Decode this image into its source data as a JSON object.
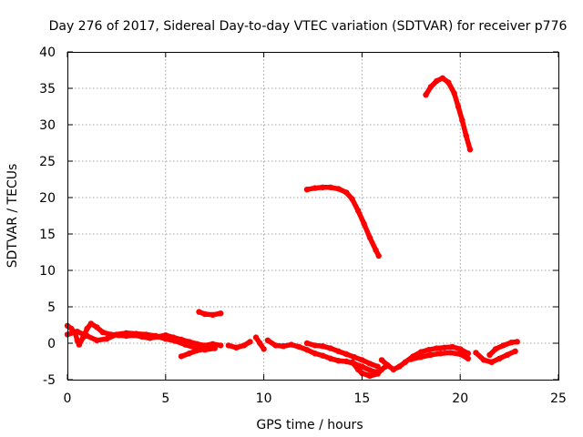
{
  "chart_data": {
    "type": "scatter",
    "title": "Day 276 of 2017, Sidereal Day-to-day VTEC variation (SDTVAR) for receiver p776",
    "xlabel": "GPS time / hours",
    "ylabel": "SDTVAR / TECUs",
    "xlim": [
      0,
      25
    ],
    "ylim": [
      -5,
      40
    ],
    "xticks": [
      0,
      5,
      10,
      15,
      20,
      25
    ],
    "yticks": [
      -5,
      0,
      5,
      10,
      15,
      20,
      25,
      30,
      35,
      40
    ],
    "grid": true,
    "color": "#ff0000",
    "series": [
      {
        "name": "s1",
        "points": [
          [
            0.0,
            2.4
          ],
          [
            0.2,
            2.0
          ],
          [
            0.4,
            1.4
          ],
          [
            0.5,
            0.4
          ],
          [
            0.6,
            -0.2
          ],
          [
            0.8,
            0.8
          ],
          [
            1.0,
            2.0
          ],
          [
            1.2,
            2.7
          ],
          [
            1.5,
            2.2
          ],
          [
            1.8,
            1.5
          ],
          [
            2.2,
            1.2
          ],
          [
            2.6,
            1.1
          ],
          [
            3.0,
            1.0
          ],
          [
            3.4,
            1.1
          ],
          [
            3.8,
            0.9
          ],
          [
            4.2,
            0.7
          ],
          [
            4.6,
            0.9
          ],
          [
            5.0,
            1.1
          ],
          [
            5.4,
            0.8
          ],
          [
            5.8,
            0.5
          ],
          [
            6.2,
            0.2
          ],
          [
            6.6,
            -0.1
          ],
          [
            7.0,
            -0.3
          ],
          [
            7.4,
            -0.1
          ],
          [
            7.8,
            -0.3
          ]
        ]
      },
      {
        "name": "s2",
        "points": [
          [
            0.0,
            1.2
          ],
          [
            0.5,
            1.6
          ],
          [
            1.0,
            1.0
          ],
          [
            1.5,
            0.4
          ],
          [
            2.0,
            0.6
          ],
          [
            2.5,
            1.2
          ],
          [
            3.0,
            1.4
          ],
          [
            3.5,
            1.3
          ],
          [
            4.0,
            1.2
          ],
          [
            4.5,
            1.0
          ],
          [
            5.0,
            0.6
          ],
          [
            5.5,
            0.3
          ],
          [
            6.0,
            -0.2
          ],
          [
            6.5,
            -0.6
          ],
          [
            7.0,
            -0.9
          ],
          [
            7.5,
            -0.7
          ]
        ]
      },
      {
        "name": "s3",
        "points": [
          [
            5.8,
            -1.8
          ],
          [
            6.2,
            -1.4
          ],
          [
            6.6,
            -1.0
          ],
          [
            7.0,
            -0.8
          ]
        ]
      },
      {
        "name": "s4",
        "points": [
          [
            6.7,
            4.3
          ],
          [
            7.0,
            4.0
          ],
          [
            7.4,
            3.9
          ],
          [
            7.8,
            4.1
          ]
        ]
      },
      {
        "name": "s5",
        "points": [
          [
            8.2,
            -0.3
          ],
          [
            8.6,
            -0.6
          ],
          [
            9.0,
            -0.3
          ],
          [
            9.3,
            0.2
          ]
        ]
      },
      {
        "name": "s6",
        "points": [
          [
            9.6,
            0.8
          ],
          [
            9.8,
            0.0
          ],
          [
            10.0,
            -0.8
          ]
        ]
      },
      {
        "name": "s7",
        "points": [
          [
            10.2,
            0.4
          ],
          [
            10.6,
            -0.3
          ],
          [
            11.0,
            -0.4
          ],
          [
            11.4,
            -0.2
          ],
          [
            11.8,
            -0.5
          ],
          [
            12.2,
            -0.9
          ],
          [
            12.6,
            -1.4
          ],
          [
            13.0,
            -1.7
          ],
          [
            13.4,
            -2.1
          ],
          [
            13.8,
            -2.4
          ],
          [
            14.2,
            -2.5
          ],
          [
            14.6,
            -2.8
          ],
          [
            15.0,
            -3.2
          ],
          [
            15.4,
            -3.7
          ],
          [
            15.8,
            -4.0
          ]
        ]
      },
      {
        "name": "s8",
        "points": [
          [
            12.2,
            0.0
          ],
          [
            12.6,
            -0.3
          ],
          [
            13.0,
            -0.4
          ],
          [
            13.4,
            -0.7
          ],
          [
            13.8,
            -1.1
          ],
          [
            14.2,
            -1.5
          ],
          [
            14.6,
            -1.9
          ],
          [
            15.0,
            -2.3
          ],
          [
            15.4,
            -2.8
          ],
          [
            15.8,
            -3.2
          ]
        ]
      },
      {
        "name": "s9",
        "points": [
          [
            14.5,
            -2.6
          ],
          [
            14.8,
            -3.6
          ],
          [
            15.0,
            -4.1
          ],
          [
            15.4,
            -4.5
          ],
          [
            15.8,
            -4.2
          ],
          [
            16.0,
            -3.6
          ],
          [
            16.2,
            -3.2
          ]
        ]
      },
      {
        "name": "s10",
        "points": [
          [
            16.0,
            -2.3
          ],
          [
            16.3,
            -3.0
          ],
          [
            16.6,
            -3.6
          ],
          [
            16.9,
            -3.2
          ],
          [
            17.2,
            -2.6
          ],
          [
            17.6,
            -1.8
          ],
          [
            18.0,
            -1.2
          ],
          [
            18.4,
            -0.9
          ],
          [
            18.8,
            -0.7
          ],
          [
            19.2,
            -0.6
          ],
          [
            19.6,
            -0.5
          ],
          [
            20.0,
            -0.8
          ],
          [
            20.4,
            -1.4
          ]
        ]
      },
      {
        "name": "s11",
        "points": [
          [
            17.5,
            -2.2
          ],
          [
            18.0,
            -1.9
          ],
          [
            18.5,
            -1.6
          ],
          [
            19.0,
            -1.4
          ],
          [
            19.5,
            -1.3
          ],
          [
            20.0,
            -1.5
          ],
          [
            20.4,
            -2.1
          ]
        ]
      },
      {
        "name": "s12",
        "points": [
          [
            20.8,
            -1.3
          ],
          [
            21.2,
            -2.3
          ],
          [
            21.6,
            -2.6
          ],
          [
            22.0,
            -2.1
          ],
          [
            22.4,
            -1.6
          ],
          [
            22.8,
            -1.1
          ]
        ]
      },
      {
        "name": "s13",
        "points": [
          [
            21.5,
            -1.6
          ],
          [
            21.8,
            -0.8
          ],
          [
            22.2,
            -0.3
          ],
          [
            22.6,
            0.1
          ],
          [
            22.9,
            0.2
          ]
        ]
      },
      {
        "name": "s14",
        "points": [
          [
            12.2,
            21.1
          ],
          [
            12.6,
            21.3
          ],
          [
            13.0,
            21.4
          ],
          [
            13.4,
            21.4
          ],
          [
            13.8,
            21.2
          ],
          [
            14.2,
            20.7
          ],
          [
            14.5,
            19.8
          ],
          [
            14.8,
            18.2
          ],
          [
            15.1,
            16.4
          ],
          [
            15.4,
            14.5
          ],
          [
            15.7,
            12.8
          ],
          [
            15.85,
            12.0
          ]
        ]
      },
      {
        "name": "s15",
        "points": [
          [
            18.25,
            34.1
          ],
          [
            18.5,
            35.2
          ],
          [
            18.8,
            36.0
          ],
          [
            19.1,
            36.4
          ],
          [
            19.4,
            35.8
          ],
          [
            19.7,
            34.3
          ],
          [
            19.9,
            32.5
          ],
          [
            20.1,
            30.6
          ],
          [
            20.3,
            28.5
          ],
          [
            20.5,
            26.6
          ]
        ]
      }
    ]
  }
}
